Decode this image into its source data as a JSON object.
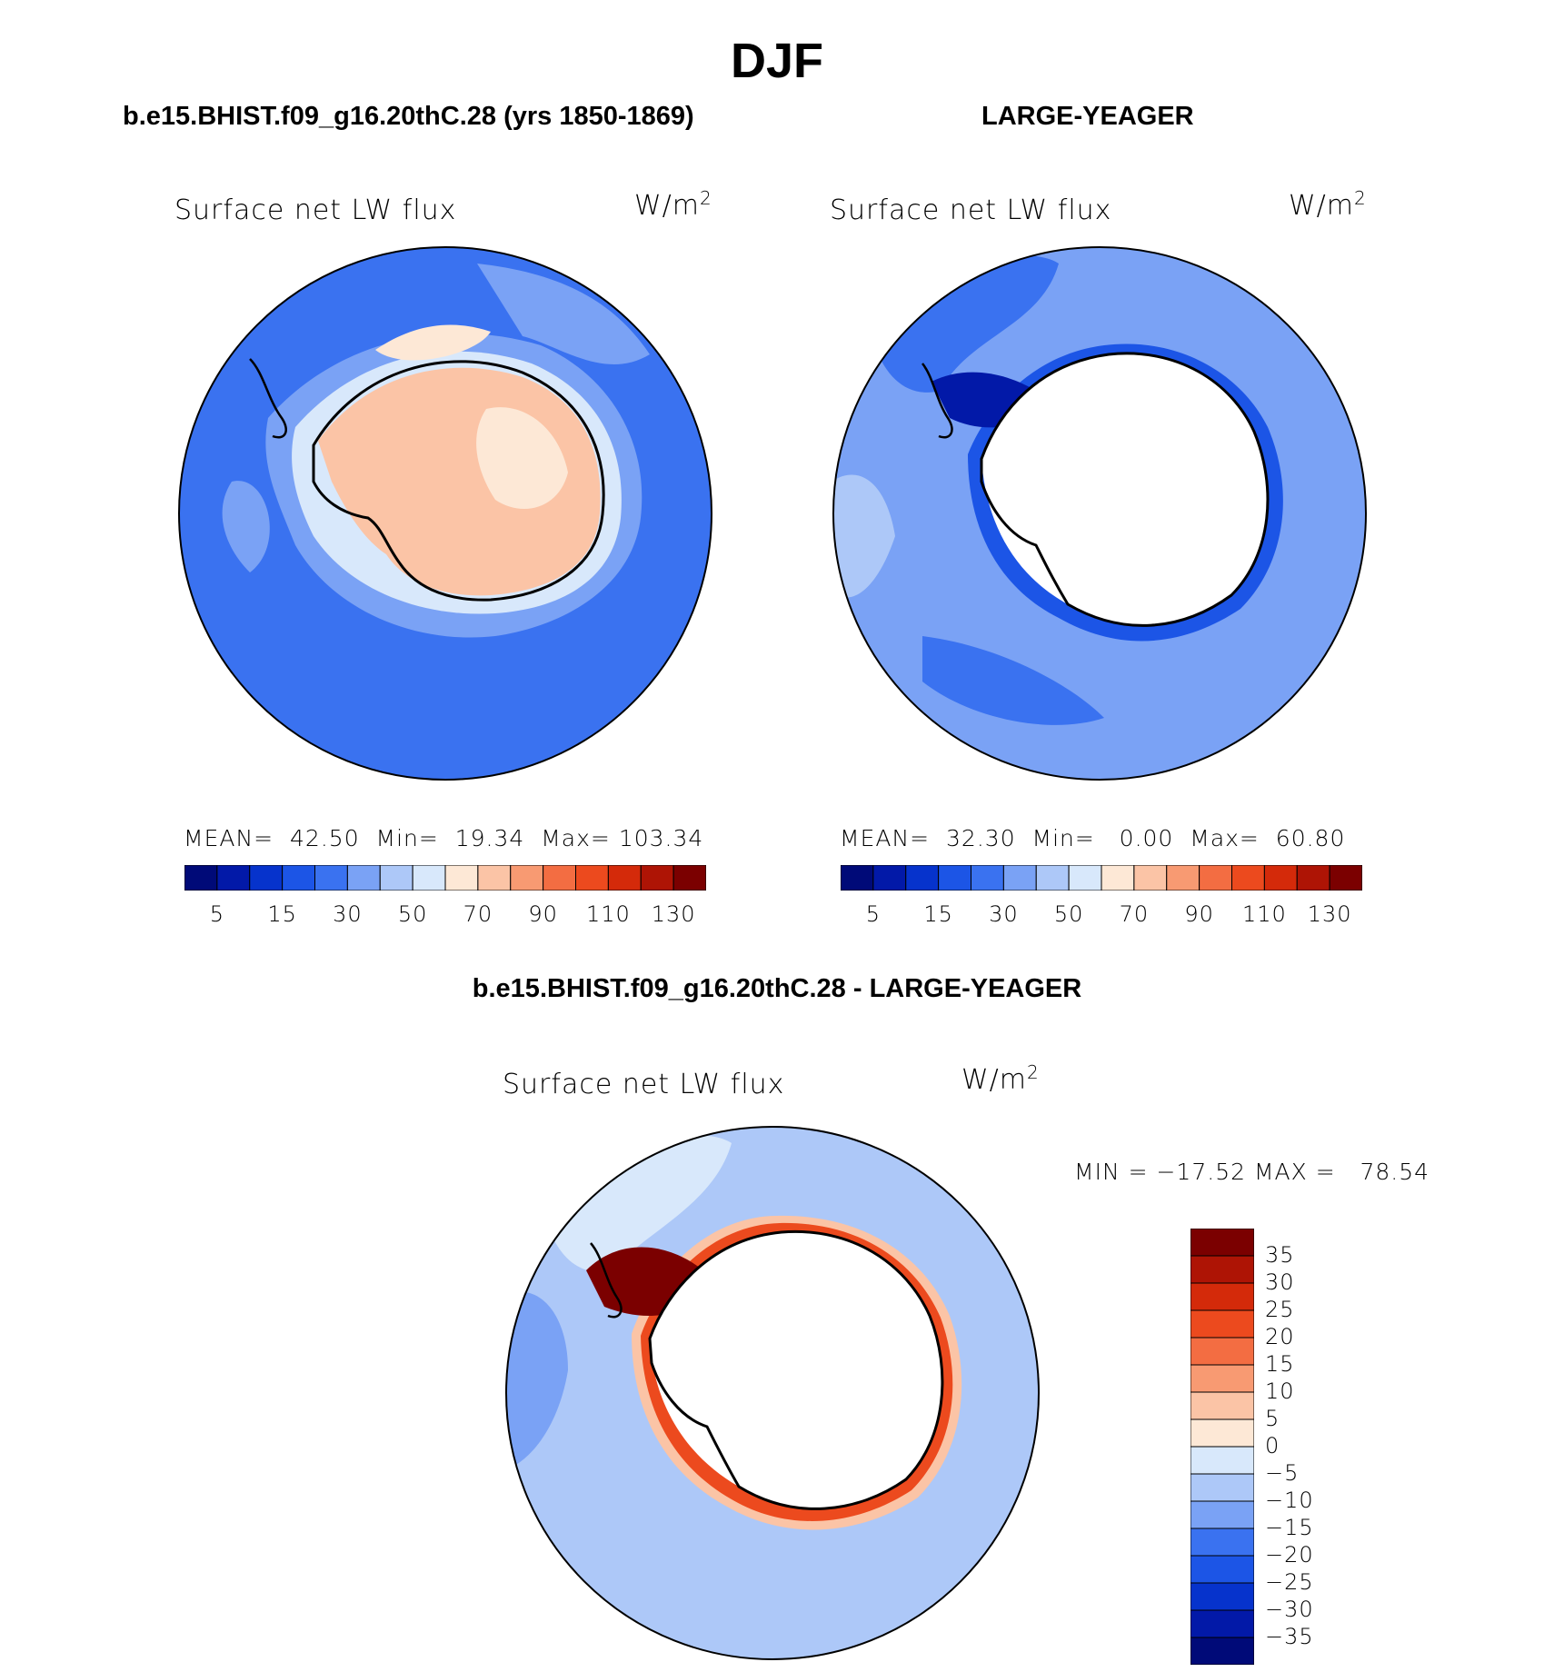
{
  "main_title": "DJF",
  "panels": {
    "case": {
      "title": "b.e15.BHIST.f09_g16.20thC.28 (yrs 1850-1869)",
      "variable": "Surface net LW flux",
      "units_base": "W/m",
      "units_exp": "2",
      "mean_label": "MEAN=",
      "mean_value": "42.50",
      "min_label": "Min=",
      "min_value": "19.34",
      "max_label": "Max=",
      "max_value": "103.34"
    },
    "obs": {
      "title": "LARGE-YEAGER",
      "variable": "Surface net LW flux",
      "units_base": "W/m",
      "units_exp": "2",
      "mean_label": "MEAN=",
      "mean_value": "32.30",
      "min_label": "Min=",
      "min_value": "0.00",
      "max_label": "Max=",
      "max_value": "60.80"
    },
    "diff": {
      "title": "b.e15.BHIST.f09_g16.20thC.28 - LARGE-YEAGER",
      "variable": "Surface net LW flux",
      "units_base": "W/m",
      "units_exp": "2",
      "minmax_text": "MIN = −17.52 MAX =   78.54"
    }
  },
  "colorbar_abs": {
    "colors": [
      "#000a78",
      "#0219a8",
      "#0633cc",
      "#1c55e6",
      "#3a72f0",
      "#7aa2f5",
      "#adc8f8",
      "#d8e8fb",
      "#fde8d6",
      "#fbc4a6",
      "#f89a72",
      "#f36d42",
      "#ec4a1e",
      "#d42a0a",
      "#ae1405",
      "#7b0000"
    ],
    "labels": [
      "5",
      "15",
      "30",
      "50",
      "70",
      "90",
      "110",
      "130"
    ]
  },
  "colorbar_diff": {
    "colors": [
      "#000a78",
      "#0219a8",
      "#0633cc",
      "#1c55e6",
      "#3a72f0",
      "#7aa2f5",
      "#adc8f8",
      "#d8e8fb",
      "#fde8d6",
      "#fbc4a6",
      "#f89a72",
      "#f36d42",
      "#ec4a1e",
      "#d42a0a",
      "#ae1405",
      "#7b0000"
    ],
    "labels": [
      "35",
      "30",
      "25",
      "20",
      "15",
      "10",
      "5",
      "0",
      "−5",
      "−10",
      "−15",
      "−20",
      "−25",
      "−30",
      "−35"
    ]
  },
  "map_colors": {
    "ocean_mid": "#3a72f0",
    "ocean_light": "#7aa2f5",
    "ice_peach": "#fbc4a6",
    "ice_light": "#fde8d6",
    "coast_pale": "#d8e8fb",
    "land_white": "#ffffff",
    "deep_blue": "#0633cc",
    "dark_red": "#7b0000",
    "red": "#d42a0a"
  }
}
